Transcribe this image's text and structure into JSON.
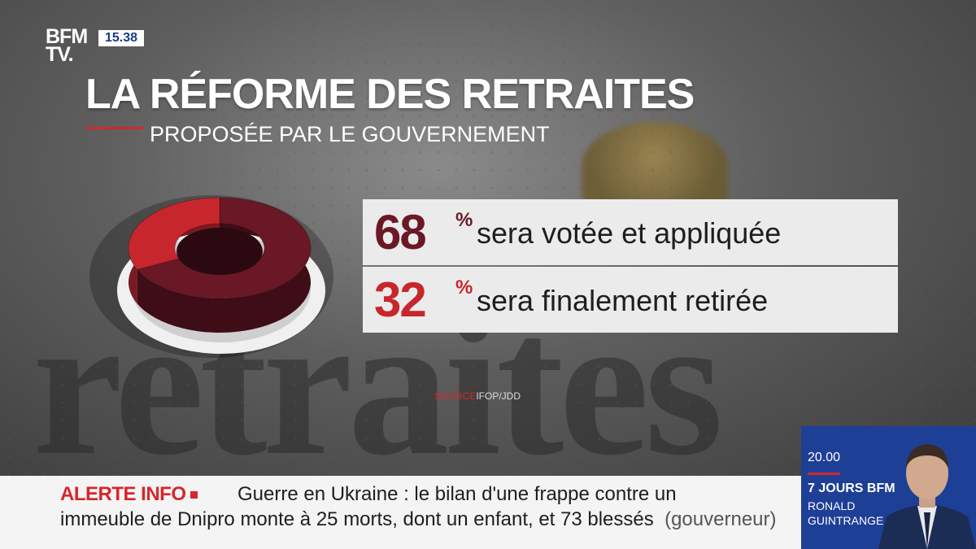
{
  "channel": {
    "logo_line1": "BFM",
    "logo_line2": "TV.",
    "clock": "15.38"
  },
  "chart_data": {
    "type": "pie",
    "title": "LA RÉFORME DES RETRAITES",
    "subtitle": "PROPOSÉE PAR LE GOUVERNEMENT",
    "categories": [
      "sera votée et appliquée",
      "sera finalement retirée"
    ],
    "values": [
      68,
      32
    ],
    "value_labels": [
      "68",
      "32"
    ],
    "unit": "%",
    "colors": [
      "#6a1826",
      "#c7262c"
    ],
    "source_label": "SOURCE",
    "source": "IFOP/JDD"
  },
  "ticker": {
    "label": "ALERTE INFO",
    "line1": "Guerre en Ukraine : le bilan d'une frappe contre un",
    "line2": "immeuble de Dnipro monte à 25 morts, dont un enfant, et 73 blessés",
    "line2_source": "(gouverneur)"
  },
  "promo": {
    "time": "20.00",
    "show": "7 JOURS BFM",
    "host_first": "RONALD",
    "host_last": "GUINTRANGE"
  }
}
